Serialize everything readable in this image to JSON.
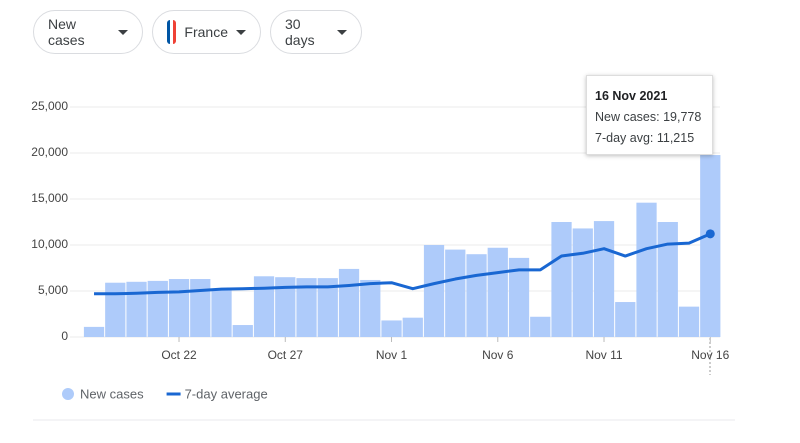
{
  "controls": {
    "metric": "New cases",
    "country": "France",
    "range": "30 days"
  },
  "tooltip": {
    "title": "16 Nov 2021",
    "lines": [
      "New cases: 19,778",
      "7-day avg: 11,215"
    ]
  },
  "chart_data": {
    "type": "combo",
    "categories": [
      null,
      null,
      null,
      null,
      "Oct 22",
      null,
      null,
      null,
      null,
      "Oct 27",
      null,
      null,
      null,
      null,
      "Nov 1",
      null,
      null,
      null,
      null,
      "Nov 6",
      null,
      null,
      null,
      null,
      "Nov 11",
      null,
      null,
      null,
      null,
      "Nov 16"
    ],
    "series": [
      {
        "name": "New cases",
        "type": "bar",
        "color": "#aecbfa",
        "values": [
          1100,
          5900,
          6000,
          6100,
          6300,
          6300,
          5200,
          1300,
          6600,
          6500,
          6400,
          6400,
          7400,
          6200,
          1800,
          2100,
          10000,
          9500,
          9000,
          9700,
          8600,
          2200,
          12500,
          11800,
          12600,
          3800,
          14600,
          12500,
          3300,
          19778
        ]
      },
      {
        "name": "7-day average",
        "type": "line",
        "color": "#1967d2",
        "values": [
          4700,
          4700,
          4750,
          4850,
          4900,
          5050,
          5200,
          5250,
          5300,
          5400,
          5450,
          5450,
          5600,
          5800,
          5900,
          5250,
          5800,
          6300,
          6700,
          7000,
          7300,
          7300,
          8800,
          9100,
          9600,
          8800,
          9600,
          10100,
          10200,
          11215
        ]
      }
    ],
    "ylim": [
      0,
      25000
    ],
    "yticks": [
      0,
      {
        "value": 5000,
        "label": "5,000"
      },
      {
        "value": 10000,
        "label": "10,000"
      },
      {
        "value": 15000,
        "label": "15,000"
      },
      {
        "value": 20000,
        "label": "20,000"
      },
      {
        "value": 25000,
        "label": "25,000"
      }
    ],
    "grid": true
  }
}
